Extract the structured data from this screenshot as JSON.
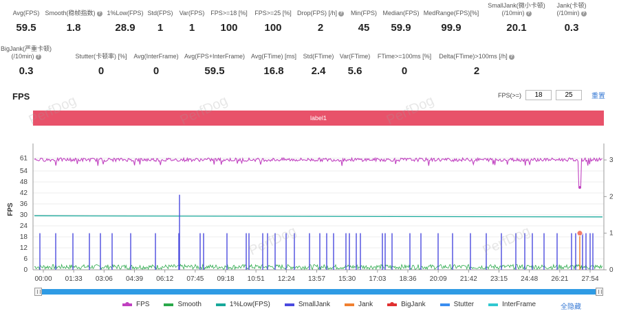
{
  "stats_row1": [
    {
      "label": "Avg(FPS)",
      "value": "59.5",
      "q": false
    },
    {
      "label": "Smooth(稳帧指数)",
      "value": "1.8",
      "q": true
    },
    {
      "label": "1%Low(FPS)",
      "value": "28.9",
      "q": false
    },
    {
      "label": "Std(FPS)",
      "value": "1",
      "q": false
    },
    {
      "label": "Var(FPS)",
      "value": "1",
      "q": false
    },
    {
      "label": "FPS>=18 [%]",
      "value": "100",
      "q": false
    },
    {
      "label": "FPS>=25 [%]",
      "value": "100",
      "q": false
    },
    {
      "label": "Drop(FPS) [/h]",
      "value": "2",
      "q": true
    },
    {
      "label": "Min(FPS)",
      "value": "45",
      "q": false
    },
    {
      "label": "Median(FPS)",
      "value": "59.9",
      "q": false
    },
    {
      "label": "MedRange(FPS)[%]",
      "value": "99.9",
      "q": false
    },
    {
      "label": "SmallJank(微小卡顿)\n(/10min)",
      "value": "20.1",
      "q": true
    },
    {
      "label": "Jank(卡顿)\n(/10min)",
      "value": "0.3",
      "q": true
    }
  ],
  "stats_row2": [
    {
      "label": "BigJank(严重卡顿)\n(/10min)",
      "value": "0.3",
      "q": true
    },
    {
      "label": "Stutter(卡顿率) [%]",
      "value": "0",
      "q": false
    },
    {
      "label": "Avg(InterFrame)",
      "value": "0",
      "q": false
    },
    {
      "label": "Avg(FPS+InterFrame)",
      "value": "59.5",
      "q": false
    },
    {
      "label": "Avg(FTime) [ms]",
      "value": "16.8",
      "q": false
    },
    {
      "label": "Std(FTime)",
      "value": "2.4",
      "q": false
    },
    {
      "label": "Var(FTime)",
      "value": "5.6",
      "q": false
    },
    {
      "label": "FTime>=100ms [%]",
      "value": "0",
      "q": false
    },
    {
      "label": "Delta(FTime)>100ms [/h]",
      "value": "2",
      "q": true
    }
  ],
  "section_title": "FPS",
  "filter": {
    "label": "FPS(>=)",
    "v1": "18",
    "v2": "25",
    "reset": "重置"
  },
  "label_bar": "label1",
  "watermark": "PerfDog",
  "chart_data": {
    "type": "line",
    "ylabel": "FPS",
    "y_ticks": [
      "61",
      "54",
      "48",
      "42",
      "36",
      "30",
      "24",
      "18",
      "12",
      "6",
      "0"
    ],
    "y_right_ticks": [
      "3",
      "2",
      "1",
      "0"
    ],
    "x_ticks": [
      "00:00",
      "01:33",
      "03:06",
      "04:39",
      "06:12",
      "07:45",
      "09:18",
      "10:51",
      "12:24",
      "13:57",
      "15:30",
      "17:03",
      "18:36",
      "20:09",
      "21:42",
      "23:15",
      "24:48",
      "26:21",
      "27:54"
    ],
    "ylim": [
      0,
      66
    ],
    "y_right_lim": [
      0,
      3.3
    ],
    "series": [
      {
        "name": "FPS",
        "color": "#c040c0",
        "baseline": 60,
        "min_point": {
          "t": "27:50",
          "value": 45
        }
      },
      {
        "name": "Smooth",
        "color": "#2aa84a"
      },
      {
        "name": "1%Low(FPS)",
        "color": "#17a89a",
        "start": 29.5,
        "end": 28.9
      },
      {
        "name": "SmallJank",
        "color": "#4a4adf",
        "spike_value": 1,
        "max_spike_value": 2.05
      },
      {
        "name": "Jank",
        "color": "#f08030"
      },
      {
        "name": "BigJank",
        "color": "#e03030",
        "event_time": "27:54",
        "value": 1
      },
      {
        "name": "Stutter",
        "color": "#3a8ef0"
      },
      {
        "name": "InterFrame",
        "color": "#30c8d0"
      }
    ],
    "hide_all": "全隐藏"
  }
}
